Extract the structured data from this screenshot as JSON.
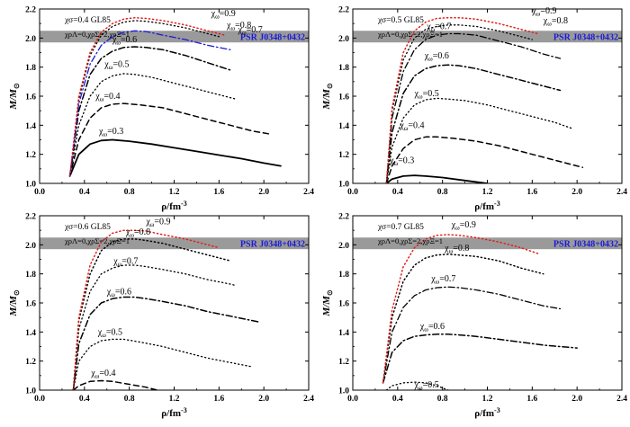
{
  "figure": {
    "xlabel": "ρ/fm",
    "xlabel_sup": "-3",
    "ylabel": "M/M",
    "ylabel_sub": "⊙",
    "band_label": "PSR J0348+0432",
    "colors": {
      "band": "#9a9a9a",
      "band_text": "#1a1adb",
      "red": "#e0201b",
      "blue": "#1a1adb",
      "black": "#000000"
    }
  },
  "chart_data": [
    {
      "type": "line",
      "panel": "top-left",
      "xlim": [
        0.0,
        2.4
      ],
      "ylim": [
        1.0,
        2.2
      ],
      "x_ticks": [
        "0.0",
        "0.4",
        "0.8",
        "1.2",
        "1.6",
        "2.0",
        "2.4"
      ],
      "y_ticks": [
        "1.0",
        "1.2",
        "1.4",
        "1.6",
        "1.8",
        "2.0",
        "2.2"
      ],
      "annotation_1": "χσ=0.4 GL85",
      "annotation_2": "χρΛ=0,χρΣ=2,χρΞ=1",
      "band": [
        1.97,
        2.05
      ],
      "series": [
        {
          "name": "χω=0.3",
          "label_at": [
            0.53,
            1.34
          ],
          "color": "#000000",
          "dash": "solid",
          "width": 1.8,
          "x": [
            0.27,
            0.35,
            0.45,
            0.55,
            0.65,
            0.8,
            1.0,
            1.2,
            1.4,
            1.6,
            1.8,
            2.0,
            2.15
          ],
          "y": [
            1.05,
            1.2,
            1.27,
            1.295,
            1.3,
            1.29,
            1.27,
            1.245,
            1.22,
            1.195,
            1.17,
            1.14,
            1.12
          ]
        },
        {
          "name": "χω=0.4",
          "label_at": [
            0.5,
            1.58
          ],
          "color": "#000000",
          "dash": "dashed",
          "width": 1.5,
          "x": [
            0.27,
            0.35,
            0.45,
            0.55,
            0.65,
            0.75,
            0.9,
            1.1,
            1.3,
            1.5,
            1.7,
            1.9,
            2.05
          ],
          "y": [
            1.05,
            1.3,
            1.45,
            1.52,
            1.545,
            1.55,
            1.54,
            1.52,
            1.48,
            1.44,
            1.4,
            1.36,
            1.34
          ]
        },
        {
          "name": "χω=0.5",
          "label_at": [
            0.58,
            1.8
          ],
          "color": "#000000",
          "dash": "dotted",
          "width": 1.3,
          "x": [
            0.27,
            0.35,
            0.45,
            0.55,
            0.65,
            0.75,
            0.85,
            1.0,
            1.2,
            1.4,
            1.6,
            1.75
          ],
          "y": [
            1.05,
            1.4,
            1.6,
            1.7,
            1.74,
            1.755,
            1.75,
            1.73,
            1.69,
            1.65,
            1.61,
            1.58
          ]
        },
        {
          "name": "χω=0.6",
          "label_at": [
            0.65,
            1.97
          ],
          "color": "#000000",
          "dash": "dashdot",
          "width": 1.5,
          "x": [
            0.27,
            0.35,
            0.45,
            0.55,
            0.65,
            0.75,
            0.85,
            0.95,
            1.1,
            1.3,
            1.5,
            1.7
          ],
          "y": [
            1.05,
            1.5,
            1.75,
            1.86,
            1.91,
            1.935,
            1.94,
            1.935,
            1.92,
            1.88,
            1.83,
            1.78
          ]
        },
        {
          "name": "χω=0.7",
          "label_at": [
            1.77,
            2.04
          ],
          "color": "#1a1adb",
          "dash": "dashdot",
          "width": 1.3,
          "x": [
            0.27,
            0.35,
            0.45,
            0.55,
            0.65,
            0.75,
            0.85,
            0.95,
            1.1,
            1.3,
            1.5,
            1.7
          ],
          "y": [
            1.05,
            1.55,
            1.82,
            1.95,
            2.01,
            2.04,
            2.05,
            2.045,
            2.02,
            1.99,
            1.95,
            1.92
          ]
        },
        {
          "name": "χω=0.8",
          "label_at": [
            1.67,
            2.07
          ],
          "color": "#000000",
          "dash": "dotted",
          "width": 1.3,
          "x": [
            0.27,
            0.35,
            0.45,
            0.55,
            0.65,
            0.75,
            0.85,
            0.95,
            1.1,
            1.3,
            1.5,
            1.6
          ],
          "y": [
            1.05,
            1.58,
            1.88,
            2.02,
            2.08,
            2.11,
            2.12,
            2.115,
            2.1,
            2.07,
            2.03,
            2.01
          ]
        },
        {
          "name": "χω=0.9",
          "label_at": [
            1.53,
            2.15
          ],
          "color": "#e0201b",
          "dash": "dotted",
          "width": 1.5,
          "x": [
            0.27,
            0.35,
            0.45,
            0.55,
            0.65,
            0.75,
            0.85,
            0.95,
            1.1,
            1.3,
            1.5,
            1.65
          ],
          "y": [
            1.05,
            1.6,
            1.9,
            2.04,
            2.1,
            2.13,
            2.14,
            2.135,
            2.12,
            2.09,
            2.05,
            2.02
          ]
        }
      ]
    },
    {
      "type": "line",
      "panel": "top-right",
      "xlim": [
        0.0,
        2.4
      ],
      "ylim": [
        1.0,
        2.2
      ],
      "x_ticks": [
        "0.0",
        "0.4",
        "0.8",
        "1.2",
        "1.6",
        "2.0",
        "2.4"
      ],
      "y_ticks": [
        "1.0",
        "1.2",
        "1.4",
        "1.6",
        "1.8",
        "2.0",
        "2.2"
      ],
      "annotation_1": "χσ=0.5 GL85",
      "annotation_2": "χρΛ=0,χρΣ=2,χρΞ=1",
      "band": [
        1.97,
        2.05
      ],
      "series": [
        {
          "name": "χω=0.3",
          "label_at": [
            0.33,
            1.14
          ],
          "color": "#000000",
          "dash": "solid",
          "width": 1.8,
          "x": [
            0.3,
            0.35,
            0.45,
            0.55,
            0.65,
            0.8,
            1.0,
            1.2
          ],
          "y": [
            1.0,
            1.03,
            1.05,
            1.055,
            1.05,
            1.04,
            1.02,
            1.0
          ]
        },
        {
          "name": "χω=0.4",
          "label_at": [
            0.42,
            1.38
          ],
          "color": "#000000",
          "dash": "dashed",
          "width": 1.5,
          "x": [
            0.3,
            0.35,
            0.45,
            0.55,
            0.65,
            0.75,
            0.9,
            1.1,
            1.3,
            1.5,
            1.7,
            1.9,
            2.05
          ],
          "y": [
            1.0,
            1.12,
            1.24,
            1.3,
            1.32,
            1.32,
            1.31,
            1.29,
            1.26,
            1.22,
            1.18,
            1.14,
            1.11
          ]
        },
        {
          "name": "χω=0.5",
          "label_at": [
            0.55,
            1.6
          ],
          "color": "#000000",
          "dash": "dotted",
          "width": 1.3,
          "x": [
            0.3,
            0.35,
            0.45,
            0.55,
            0.65,
            0.75,
            0.85,
            1.0,
            1.2,
            1.4,
            1.6,
            1.8,
            1.95
          ],
          "y": [
            1.0,
            1.25,
            1.45,
            1.54,
            1.575,
            1.585,
            1.58,
            1.57,
            1.54,
            1.5,
            1.46,
            1.42,
            1.38
          ]
        },
        {
          "name": "χω=0.6",
          "label_at": [
            0.64,
            1.86
          ],
          "color": "#000000",
          "dash": "dashdot",
          "width": 1.5,
          "x": [
            0.3,
            0.35,
            0.45,
            0.55,
            0.65,
            0.75,
            0.85,
            0.95,
            1.1,
            1.3,
            1.5,
            1.7,
            1.85
          ],
          "y": [
            1.0,
            1.35,
            1.62,
            1.74,
            1.79,
            1.81,
            1.815,
            1.81,
            1.79,
            1.75,
            1.71,
            1.67,
            1.64
          ]
        },
        {
          "name": "χω=0.7",
          "label_at": [
            0.66,
            2.06
          ],
          "color": "#000000",
          "dash": "dashdot",
          "width": 1.3,
          "x": [
            0.3,
            0.35,
            0.45,
            0.55,
            0.65,
            0.75,
            0.85,
            0.95,
            1.1,
            1.3,
            1.5,
            1.7,
            1.85
          ],
          "y": [
            1.0,
            1.45,
            1.77,
            1.92,
            1.99,
            2.02,
            2.03,
            2.03,
            2.02,
            1.98,
            1.94,
            1.89,
            1.86
          ]
        },
        {
          "name": "χω=0.8",
          "label_at": [
            1.7,
            2.1
          ],
          "color": "#000000",
          "dash": "dotted",
          "width": 1.3,
          "x": [
            0.3,
            0.35,
            0.45,
            0.55,
            0.65,
            0.75,
            0.85,
            0.95,
            1.1,
            1.3,
            1.5,
            1.6
          ],
          "y": [
            1.0,
            1.5,
            1.85,
            2.0,
            2.06,
            2.08,
            2.09,
            2.09,
            2.08,
            2.05,
            2.01,
            1.99
          ]
        },
        {
          "name": "χω=0.9",
          "label_at": [
            1.6,
            2.17
          ],
          "color": "#e0201b",
          "dash": "dotted",
          "width": 1.5,
          "x": [
            0.3,
            0.35,
            0.45,
            0.55,
            0.65,
            0.75,
            0.85,
            0.95,
            1.1,
            1.3,
            1.5,
            1.65
          ],
          "y": [
            1.0,
            1.52,
            1.9,
            2.05,
            2.11,
            2.135,
            2.14,
            2.14,
            2.13,
            2.1,
            2.06,
            2.03
          ]
        }
      ]
    },
    {
      "type": "line",
      "panel": "bottom-left",
      "xlim": [
        0.0,
        2.4
      ],
      "ylim": [
        1.0,
        2.2
      ],
      "x_ticks": [
        "0.0",
        "0.4",
        "0.8",
        "1.2",
        "1.6",
        "2.0",
        "2.4"
      ],
      "y_ticks": [
        "1.0",
        "1.2",
        "1.4",
        "1.6",
        "1.8",
        "2.0",
        "2.2"
      ],
      "annotation_1": "χσ=0.6 GL85",
      "annotation_2": "χρΛ=0,χρΣ=2,χρΞ=1",
      "band": [
        1.97,
        2.05
      ],
      "series": [
        {
          "name": "χω=0.4",
          "label_at": [
            0.46,
            1.1
          ],
          "color": "#000000",
          "dash": "dashed",
          "width": 1.5,
          "x": [
            0.3,
            0.35,
            0.45,
            0.55,
            0.65,
            0.8,
            0.95,
            1.05
          ],
          "y": [
            1.0,
            1.03,
            1.06,
            1.065,
            1.06,
            1.04,
            1.02,
            1.0
          ]
        },
        {
          "name": "χω=0.5",
          "label_at": [
            0.52,
            1.38
          ],
          "color": "#000000",
          "dash": "dotted",
          "width": 1.3,
          "x": [
            0.3,
            0.35,
            0.45,
            0.55,
            0.65,
            0.75,
            0.9,
            1.1,
            1.3,
            1.5,
            1.7,
            1.9
          ],
          "y": [
            1.0,
            1.2,
            1.3,
            1.34,
            1.35,
            1.35,
            1.33,
            1.3,
            1.26,
            1.22,
            1.19,
            1.16
          ]
        },
        {
          "name": "χω=0.6",
          "label_at": [
            0.6,
            1.66
          ],
          "color": "#000000",
          "dash": "dashdot",
          "width": 1.5,
          "x": [
            0.3,
            0.35,
            0.45,
            0.55,
            0.65,
            0.75,
            0.85,
            0.95,
            1.1,
            1.3,
            1.5,
            1.7,
            1.95
          ],
          "y": [
            1.0,
            1.32,
            1.52,
            1.6,
            1.63,
            1.64,
            1.64,
            1.63,
            1.61,
            1.58,
            1.54,
            1.51,
            1.47
          ]
        },
        {
          "name": "χω=0.7",
          "label_at": [
            0.66,
            1.87
          ],
          "color": "#000000",
          "dash": "dotted",
          "width": 1.3,
          "x": [
            0.3,
            0.35,
            0.45,
            0.55,
            0.65,
            0.75,
            0.85,
            0.95,
            1.1,
            1.3,
            1.5,
            1.7,
            1.75
          ],
          "y": [
            1.0,
            1.42,
            1.68,
            1.8,
            1.84,
            1.86,
            1.86,
            1.85,
            1.83,
            1.8,
            1.76,
            1.73,
            1.72
          ]
        },
        {
          "name": "χω=0.8",
          "label_at": [
            0.77,
            2.07
          ],
          "color": "#000000",
          "dash": "dotted",
          "width": 1.5,
          "x": [
            0.3,
            0.35,
            0.45,
            0.55,
            0.65,
            0.75,
            0.85,
            0.95,
            1.1,
            1.3,
            1.5,
            1.7
          ],
          "y": [
            1.0,
            1.48,
            1.8,
            1.96,
            2.02,
            2.04,
            2.04,
            2.03,
            2.01,
            1.97,
            1.93,
            1.89
          ]
        },
        {
          "name": "χω=0.9",
          "label_at": [
            0.95,
            2.14
          ],
          "color": "#e0201b",
          "dash": "dotted",
          "width": 1.5,
          "x": [
            0.3,
            0.35,
            0.45,
            0.55,
            0.65,
            0.75,
            0.85,
            0.95,
            1.1,
            1.3,
            1.5,
            1.6
          ],
          "y": [
            1.0,
            1.5,
            1.86,
            2.02,
            2.08,
            2.1,
            2.1,
            2.095,
            2.07,
            2.04,
            2.0,
            1.98
          ]
        }
      ]
    },
    {
      "type": "line",
      "panel": "bottom-right",
      "xlim": [
        0.0,
        2.4
      ],
      "ylim": [
        1.0,
        2.2
      ],
      "x_ticks": [
        "0.0",
        "0.4",
        "0.8",
        "1.2",
        "1.6",
        "2.0",
        "2.4"
      ],
      "y_ticks": [
        "1.0",
        "1.2",
        "1.4",
        "1.6",
        "1.8",
        "2.0",
        "2.2"
      ],
      "annotation_1": "χσ=0.7 GL85",
      "annotation_2": "χρΛ=0,χρΣ=2,χρΞ=1",
      "band": [
        1.97,
        2.05
      ],
      "series": [
        {
          "name": "χω=0.5",
          "label_at": [
            0.55,
            1.02
          ],
          "color": "#000000",
          "dash": "dotted",
          "width": 1.3,
          "x": [
            0.3,
            0.35,
            0.45,
            0.55,
            0.65,
            0.75,
            0.85
          ],
          "y": [
            1.0,
            1.03,
            1.05,
            1.055,
            1.05,
            1.03,
            1.0
          ]
        },
        {
          "name": "χω=0.6",
          "label_at": [
            0.6,
            1.42
          ],
          "color": "#000000",
          "dash": "dashdot",
          "width": 1.5,
          "x": [
            0.27,
            0.35,
            0.45,
            0.55,
            0.65,
            0.75,
            0.85,
            0.95,
            1.1,
            1.3,
            1.5,
            1.7,
            2.0
          ],
          "y": [
            1.05,
            1.26,
            1.34,
            1.37,
            1.38,
            1.385,
            1.385,
            1.38,
            1.37,
            1.35,
            1.33,
            1.31,
            1.29
          ]
        },
        {
          "name": "χω=0.7",
          "label_at": [
            0.7,
            1.75
          ],
          "color": "#000000",
          "dash": "dashdot",
          "width": 1.3,
          "x": [
            0.27,
            0.35,
            0.45,
            0.55,
            0.65,
            0.75,
            0.85,
            0.95,
            1.1,
            1.3,
            1.5,
            1.7,
            1.85
          ],
          "y": [
            1.05,
            1.4,
            1.57,
            1.65,
            1.69,
            1.705,
            1.71,
            1.705,
            1.69,
            1.66,
            1.62,
            1.58,
            1.56
          ]
        },
        {
          "name": "χω=0.8",
          "label_at": [
            0.82,
            1.96
          ],
          "color": "#000000",
          "dash": "dotted",
          "width": 1.5,
          "x": [
            0.27,
            0.35,
            0.45,
            0.55,
            0.65,
            0.75,
            0.85,
            0.95,
            1.1,
            1.3,
            1.5,
            1.7
          ],
          "y": [
            1.05,
            1.5,
            1.75,
            1.86,
            1.91,
            1.93,
            1.935,
            1.93,
            1.92,
            1.89,
            1.84,
            1.8
          ]
        },
        {
          "name": "χω=0.9",
          "label_at": [
            0.88,
            2.12
          ],
          "color": "#e0201b",
          "dash": "dotted",
          "width": 1.5,
          "x": [
            0.27,
            0.35,
            0.45,
            0.55,
            0.65,
            0.75,
            0.85,
            0.95,
            1.1,
            1.3,
            1.5,
            1.65
          ],
          "y": [
            1.05,
            1.55,
            1.85,
            1.98,
            2.04,
            2.065,
            2.07,
            2.065,
            2.05,
            2.02,
            1.98,
            1.94
          ]
        }
      ]
    }
  ]
}
